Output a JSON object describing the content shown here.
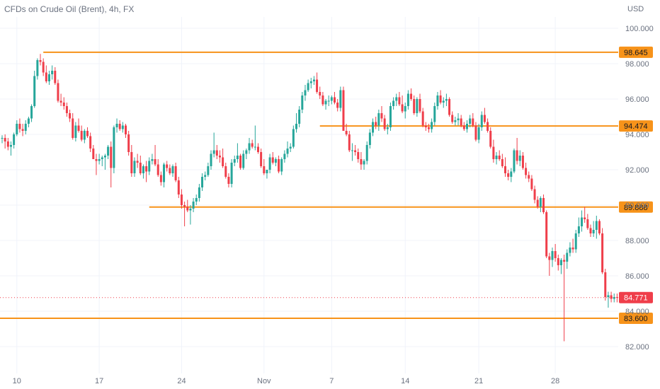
{
  "chart_data": {
    "type": "candlestick",
    "title": "CFDs on Crude Oil (Brent), 4h, FX",
    "currency": "USD",
    "y_ticks": [
      "100.000",
      "98.000",
      "96.000",
      "94.000",
      "92.000",
      "90.000",
      "88.000",
      "86.000",
      "84.000",
      "82.000"
    ],
    "ylim": [
      81.0,
      101.0
    ],
    "x_ticks": [
      {
        "label": "10",
        "index": 5
      },
      {
        "label": "17",
        "index": 33
      },
      {
        "label": "24",
        "index": 61
      },
      {
        "label": "Nov",
        "index": 89
      },
      {
        "label": "7",
        "index": 112
      },
      {
        "label": "14",
        "index": 137
      },
      {
        "label": "21",
        "index": 162
      },
      {
        "label": "28",
        "index": 188
      }
    ],
    "levels": [
      {
        "value": 98.645,
        "label": "98.645",
        "start_index": 14
      },
      {
        "value": 94.474,
        "label": "94.474",
        "start_index": 108
      },
      {
        "value": 89.888,
        "label": "89.888",
        "start_index": 50
      },
      {
        "value": 83.6,
        "label": "83.600",
        "start_index": 0
      }
    ],
    "last_price": {
      "value": 84.771,
      "label": "84.771"
    },
    "colors": {
      "up": "#26a69a",
      "down": "#ef3e4a",
      "level": "#f7931a",
      "last": "#ef3e4a",
      "grid": "#f0f3fa",
      "text": "#6b7280"
    },
    "candles": [
      [
        93.8,
        93.95,
        93.5,
        93.8
      ],
      [
        93.8,
        94.0,
        93.2,
        93.6
      ],
      [
        93.6,
        93.8,
        93.1,
        93.3
      ],
      [
        93.3,
        93.6,
        92.8,
        93.4
      ],
      [
        93.4,
        94.1,
        93.2,
        94.0
      ],
      [
        94.0,
        94.8,
        93.9,
        94.6
      ],
      [
        94.6,
        94.9,
        94.1,
        94.3
      ],
      [
        94.3,
        94.6,
        93.9,
        94.2
      ],
      [
        94.2,
        94.8,
        94.0,
        94.6
      ],
      [
        94.6,
        95.0,
        94.4,
        94.9
      ],
      [
        94.9,
        95.7,
        94.7,
        95.6
      ],
      [
        95.6,
        97.6,
        95.5,
        97.3
      ],
      [
        97.3,
        98.3,
        97.1,
        98.2
      ],
      [
        98.2,
        98.55,
        97.9,
        98.1
      ],
      [
        98.1,
        98.3,
        97.3,
        97.5
      ],
      [
        97.5,
        97.9,
        96.9,
        97.0
      ],
      [
        97.0,
        97.6,
        96.8,
        97.4
      ],
      [
        97.4,
        97.9,
        97.1,
        97.6
      ],
      [
        97.6,
        97.8,
        96.8,
        96.9
      ],
      [
        96.9,
        97.1,
        95.8,
        95.9
      ],
      [
        95.9,
        96.3,
        95.6,
        95.8
      ],
      [
        95.8,
        96.1,
        95.4,
        95.6
      ],
      [
        95.6,
        95.8,
        95.0,
        95.2
      ],
      [
        95.2,
        95.4,
        94.7,
        94.9
      ],
      [
        94.9,
        95.2,
        93.7,
        93.8
      ],
      [
        93.8,
        94.7,
        93.6,
        94.5
      ],
      [
        94.5,
        94.9,
        94.1,
        94.2
      ],
      [
        94.2,
        94.5,
        93.6,
        93.7
      ],
      [
        93.7,
        94.3,
        93.5,
        94.2
      ],
      [
        94.2,
        94.4,
        93.8,
        93.9
      ],
      [
        93.9,
        94.1,
        93.0,
        93.2
      ],
      [
        93.2,
        93.4,
        92.6,
        92.6
      ],
      [
        92.6,
        92.9,
        91.7,
        92.5
      ],
      [
        92.5,
        92.9,
        92.3,
        92.6
      ],
      [
        92.6,
        92.8,
        92.2,
        92.7
      ],
      [
        92.7,
        92.9,
        92.0,
        92.8
      ],
      [
        92.8,
        93.4,
        92.6,
        93.3
      ],
      [
        93.3,
        93.6,
        91.0,
        92.1
      ],
      [
        92.1,
        94.5,
        91.8,
        94.4
      ],
      [
        94.4,
        94.9,
        94.1,
        94.6
      ],
      [
        94.6,
        94.8,
        94.2,
        94.3
      ],
      [
        94.3,
        94.7,
        94.1,
        94.5
      ],
      [
        94.5,
        94.6,
        93.8,
        94.0
      ],
      [
        94.0,
        94.2,
        92.8,
        93.0
      ],
      [
        93.0,
        93.4,
        91.6,
        91.8
      ],
      [
        91.8,
        92.7,
        91.6,
        92.5
      ],
      [
        92.5,
        92.9,
        92.1,
        92.4
      ],
      [
        92.4,
        92.8,
        91.7,
        91.8
      ],
      [
        91.8,
        92.3,
        91.5,
        92.2
      ],
      [
        92.2,
        92.5,
        91.3,
        91.9
      ],
      [
        91.9,
        92.7,
        91.7,
        92.5
      ],
      [
        92.5,
        92.9,
        92.3,
        92.6
      ],
      [
        92.6,
        93.4,
        92.2,
        92.3
      ],
      [
        92.3,
        92.6,
        91.6,
        91.7
      ],
      [
        91.7,
        91.9,
        91.1,
        91.3
      ],
      [
        91.3,
        92.4,
        91.0,
        92.3
      ],
      [
        92.3,
        92.5,
        91.9,
        92.1
      ],
      [
        92.1,
        92.3,
        91.7,
        91.8
      ],
      [
        91.8,
        92.3,
        91.6,
        92.2
      ],
      [
        92.2,
        92.4,
        91.3,
        91.4
      ],
      [
        91.4,
        91.6,
        90.4,
        90.6
      ],
      [
        90.6,
        90.9,
        89.8,
        90.0
      ],
      [
        90.0,
        90.2,
        88.8,
        89.9
      ],
      [
        89.9,
        90.3,
        89.6,
        89.7
      ],
      [
        89.7,
        90.0,
        88.9,
        89.8
      ],
      [
        89.8,
        90.4,
        89.6,
        90.2
      ],
      [
        90.2,
        90.6,
        90.0,
        90.4
      ],
      [
        90.4,
        91.2,
        90.2,
        91.0
      ],
      [
        91.0,
        91.8,
        90.8,
        91.6
      ],
      [
        91.6,
        91.9,
        91.4,
        91.7
      ],
      [
        91.7,
        92.4,
        91.6,
        92.2
      ],
      [
        92.2,
        93.1,
        92.0,
        92.9
      ],
      [
        92.9,
        94.1,
        92.7,
        93.1
      ],
      [
        93.1,
        93.4,
        92.6,
        92.8
      ],
      [
        92.8,
        93.1,
        92.4,
        92.7
      ],
      [
        92.7,
        93.2,
        92.1,
        92.2
      ],
      [
        92.2,
        92.4,
        91.5,
        91.6
      ],
      [
        91.6,
        91.8,
        91.0,
        91.2
      ],
      [
        91.2,
        92.6,
        91.0,
        92.4
      ],
      [
        92.4,
        92.8,
        92.2,
        92.6
      ],
      [
        92.6,
        93.5,
        92.4,
        92.8
      ],
      [
        92.8,
        92.9,
        92.0,
        92.1
      ],
      [
        92.1,
        93.1,
        92.0,
        92.9
      ],
      [
        92.9,
        93.2,
        92.6,
        93.1
      ],
      [
        93.1,
        93.8,
        92.9,
        93.5
      ],
      [
        93.5,
        93.7,
        93.2,
        93.3
      ],
      [
        93.3,
        94.5,
        93.1,
        93.3
      ],
      [
        93.3,
        93.5,
        92.9,
        93.0
      ],
      [
        93.0,
        93.2,
        92.1,
        92.2
      ],
      [
        92.2,
        92.6,
        91.7,
        91.8
      ],
      [
        91.8,
        92.0,
        91.5,
        92.0
      ],
      [
        92.0,
        92.9,
        91.8,
        92.7
      ],
      [
        92.7,
        93.0,
        92.3,
        92.4
      ],
      [
        92.4,
        92.7,
        92.2,
        92.6
      ],
      [
        92.6,
        92.8,
        91.8,
        91.9
      ],
      [
        91.9,
        92.7,
        91.7,
        92.6
      ],
      [
        92.6,
        93.1,
        92.4,
        92.9
      ],
      [
        92.9,
        93.6,
        92.7,
        93.2
      ],
      [
        93.2,
        93.5,
        93.0,
        93.3
      ],
      [
        93.3,
        94.5,
        93.2,
        94.3
      ],
      [
        94.3,
        95.2,
        94.1,
        94.6
      ],
      [
        94.6,
        95.6,
        94.4,
        95.4
      ],
      [
        95.4,
        96.4,
        95.2,
        96.2
      ],
      [
        96.2,
        96.8,
        95.9,
        96.5
      ],
      [
        96.5,
        97.1,
        96.4,
        96.9
      ],
      [
        96.9,
        97.2,
        96.6,
        97.0
      ],
      [
        97.0,
        97.3,
        96.8,
        97.1
      ],
      [
        97.1,
        97.5,
        96.3,
        96.4
      ],
      [
        96.4,
        96.7,
        96.0,
        96.2
      ],
      [
        96.2,
        96.4,
        95.6,
        95.7
      ],
      [
        95.7,
        96.0,
        95.4,
        95.9
      ],
      [
        95.9,
        96.2,
        95.6,
        95.9
      ],
      [
        95.9,
        96.2,
        95.7,
        96.1
      ],
      [
        96.1,
        96.4,
        95.7,
        95.8
      ],
      [
        95.8,
        96.0,
        95.3,
        95.5
      ],
      [
        95.5,
        96.7,
        95.3,
        96.5
      ],
      [
        96.5,
        96.7,
        94.3,
        94.2
      ],
      [
        94.2,
        94.6,
        93.9,
        94.0
      ],
      [
        94.0,
        94.2,
        93.0,
        93.1
      ],
      [
        93.1,
        93.5,
        92.5,
        93.1
      ],
      [
        93.1,
        93.4,
        92.8,
        93.0
      ],
      [
        93.0,
        93.2,
        92.4,
        92.6
      ],
      [
        92.6,
        93.0,
        92.0,
        92.3
      ],
      [
        92.3,
        92.6,
        92.0,
        92.5
      ],
      [
        92.5,
        93.6,
        92.3,
        93.4
      ],
      [
        93.4,
        94.3,
        93.2,
        94.1
      ],
      [
        94.1,
        94.9,
        93.9,
        94.7
      ],
      [
        94.7,
        95.0,
        94.3,
        94.5
      ],
      [
        94.5,
        95.4,
        94.2,
        95.2
      ],
      [
        95.2,
        95.6,
        94.7,
        94.9
      ],
      [
        94.9,
        95.1,
        94.2,
        94.3
      ],
      [
        94.3,
        94.6,
        94.0,
        94.4
      ],
      [
        94.4,
        95.8,
        94.2,
        95.6
      ],
      [
        95.6,
        96.1,
        95.4,
        95.9
      ],
      [
        95.9,
        96.3,
        95.6,
        96.1
      ],
      [
        96.1,
        96.4,
        95.6,
        95.7
      ],
      [
        95.7,
        96.2,
        95.2,
        95.3
      ],
      [
        95.3,
        95.8,
        94.9,
        95.6
      ],
      [
        95.6,
        96.5,
        95.4,
        96.3
      ],
      [
        96.3,
        96.6,
        95.9,
        96.0
      ],
      [
        96.0,
        96.2,
        95.1,
        95.2
      ],
      [
        95.2,
        96.1,
        95.0,
        96.0
      ],
      [
        96.0,
        96.3,
        95.2,
        95.3
      ],
      [
        95.3,
        95.5,
        94.4,
        94.5
      ],
      [
        94.5,
        94.7,
        94.2,
        94.4
      ],
      [
        94.4,
        94.6,
        94.1,
        94.3
      ],
      [
        94.3,
        94.9,
        94.1,
        94.7
      ],
      [
        94.7,
        95.8,
        94.5,
        95.6
      ],
      [
        95.6,
        96.4,
        95.4,
        96.2
      ],
      [
        96.2,
        96.5,
        95.7,
        95.8
      ],
      [
        95.8,
        96.1,
        95.5,
        95.9
      ],
      [
        95.9,
        96.3,
        95.6,
        96.0
      ],
      [
        96.0,
        96.1,
        95.0,
        95.1
      ],
      [
        95.1,
        95.3,
        94.6,
        94.7
      ],
      [
        94.7,
        95.0,
        94.5,
        94.8
      ],
      [
        94.8,
        95.2,
        94.5,
        94.9
      ],
      [
        94.9,
        95.1,
        94.4,
        94.5
      ],
      [
        94.5,
        94.7,
        94.2,
        94.3
      ],
      [
        94.3,
        94.8,
        94.1,
        94.6
      ],
      [
        94.6,
        95.1,
        94.4,
        94.9
      ],
      [
        94.9,
        95.2,
        94.4,
        94.5
      ],
      [
        94.5,
        94.7,
        93.6,
        93.7
      ],
      [
        93.7,
        94.6,
        93.5,
        94.4
      ],
      [
        94.4,
        95.3,
        94.2,
        95.1
      ],
      [
        95.1,
        95.5,
        94.6,
        94.7
      ],
      [
        94.7,
        94.9,
        94.1,
        94.2
      ],
      [
        94.2,
        94.4,
        93.2,
        93.3
      ],
      [
        93.3,
        93.7,
        92.4,
        92.6
      ],
      [
        92.6,
        93.0,
        92.3,
        92.8
      ],
      [
        92.8,
        93.1,
        92.5,
        92.6
      ],
      [
        92.6,
        92.9,
        92.1,
        92.2
      ],
      [
        92.2,
        92.7,
        91.6,
        91.8
      ],
      [
        91.8,
        92.0,
        91.4,
        91.6
      ],
      [
        91.6,
        92.1,
        91.3,
        91.9
      ],
      [
        91.9,
        93.2,
        91.8,
        93.1
      ],
      [
        93.1,
        93.8,
        92.3,
        92.5
      ],
      [
        92.5,
        93.1,
        92.2,
        92.8
      ],
      [
        92.8,
        93.0,
        92.0,
        92.1
      ],
      [
        92.1,
        92.4,
        91.5,
        91.7
      ],
      [
        91.7,
        91.9,
        91.3,
        91.5
      ],
      [
        91.5,
        91.7,
        90.8,
        90.9
      ],
      [
        90.9,
        91.1,
        90.1,
        90.3
      ],
      [
        90.3,
        90.5,
        89.8,
        89.9
      ],
      [
        89.9,
        90.5,
        89.6,
        90.4
      ],
      [
        90.4,
        90.6,
        89.5,
        89.6
      ],
      [
        89.6,
        89.7,
        87.0,
        87.1
      ],
      [
        87.1,
        87.3,
        86.0,
        86.9
      ],
      [
        86.9,
        87.6,
        86.5,
        87.4
      ],
      [
        87.4,
        87.8,
        86.8,
        87.0
      ],
      [
        87.0,
        87.2,
        86.3,
        86.6
      ],
      [
        86.6,
        87.0,
        86.1,
        86.9
      ],
      [
        86.9,
        87.2,
        82.3,
        86.8
      ],
      [
        86.8,
        87.5,
        86.4,
        87.3
      ],
      [
        87.3,
        87.9,
        87.1,
        87.6
      ],
      [
        87.6,
        88.1,
        87.3,
        87.5
      ],
      [
        87.5,
        88.6,
        87.3,
        88.4
      ],
      [
        88.4,
        89.3,
        88.2,
        88.8
      ],
      [
        88.8,
        89.7,
        88.5,
        89.3
      ],
      [
        89.3,
        89.9,
        89.0,
        89.2
      ],
      [
        89.2,
        89.5,
        88.6,
        88.7
      ],
      [
        88.7,
        88.9,
        88.2,
        88.4
      ],
      [
        88.4,
        89.1,
        88.2,
        88.6
      ],
      [
        88.6,
        89.4,
        88.1,
        89.1
      ],
      [
        89.1,
        89.2,
        88.3,
        88.4
      ],
      [
        88.4,
        88.7,
        86.1,
        86.2
      ],
      [
        86.2,
        86.4,
        84.6,
        84.8
      ],
      [
        84.8,
        85.1,
        84.2,
        84.9
      ],
      [
        84.9,
        85.1,
        84.5,
        84.7
      ],
      [
        84.7,
        85.0,
        84.5,
        84.8
      ],
      [
        84.8,
        85.0,
        84.5,
        84.77
      ]
    ]
  }
}
